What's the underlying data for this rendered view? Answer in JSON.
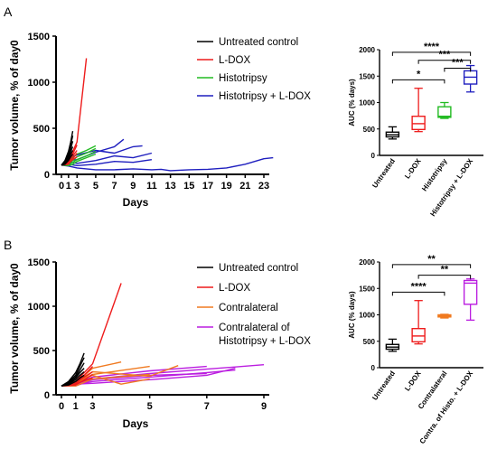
{
  "chart_data": [
    {
      "panel": "A",
      "type": "line",
      "xlabel": "Days",
      "ylabel": "Tumor volume, % of day0",
      "xticks": [
        "0",
        "1",
        "3",
        "5",
        "7",
        "9",
        "11",
        "13",
        "15",
        "17",
        "19",
        "21",
        "23"
      ],
      "yticks": [
        "0",
        "500",
        "1000",
        "1500"
      ],
      "xlim": [
        -0.5,
        24
      ],
      "ylim": [
        0,
        1500
      ],
      "legend": [
        {
          "name": "Untreated control",
          "color": "#000000"
        },
        {
          "name": "L-DOX",
          "color": "#ee1c1c"
        },
        {
          "name": "Histotripsy",
          "color": "#22bb22"
        },
        {
          "name": "Histotripsy + L-DOX",
          "color": "#1f1fbf"
        }
      ],
      "series": [
        {
          "group": 0,
          "x": [
            0,
            0.5,
            1,
            1.5,
            2
          ],
          "y": [
            100,
            150,
            250,
            350,
            470
          ]
        },
        {
          "group": 0,
          "x": [
            0,
            0.5,
            1,
            1.5,
            2
          ],
          "y": [
            100,
            140,
            220,
            320,
            420
          ]
        },
        {
          "group": 0,
          "x": [
            0,
            0.5,
            1,
            1.5,
            2
          ],
          "y": [
            100,
            130,
            200,
            280,
            360
          ]
        },
        {
          "group": 0,
          "x": [
            0,
            0.5,
            1,
            1.5,
            2
          ],
          "y": [
            100,
            125,
            190,
            250,
            300
          ]
        },
        {
          "group": 0,
          "x": [
            0,
            0.5,
            1,
            1.5,
            2
          ],
          "y": [
            100,
            120,
            170,
            220,
            260
          ]
        },
        {
          "group": 0,
          "x": [
            0,
            0.5,
            1,
            1.5,
            2
          ],
          "y": [
            100,
            110,
            150,
            190,
            220
          ]
        },
        {
          "group": 1,
          "x": [
            0,
            1,
            2,
            3,
            4
          ],
          "y": [
            100,
            150,
            250,
            350,
            1260
          ]
        },
        {
          "group": 1,
          "x": [
            0,
            1,
            2,
            3
          ],
          "y": [
            100,
            140,
            220,
            320
          ]
        },
        {
          "group": 1,
          "x": [
            0,
            1,
            2,
            3
          ],
          "y": [
            100,
            130,
            200,
            260
          ]
        },
        {
          "group": 1,
          "x": [
            0,
            1,
            2,
            3
          ],
          "y": [
            100,
            110,
            170,
            230
          ]
        },
        {
          "group": 1,
          "x": [
            0,
            1,
            2,
            3
          ],
          "y": [
            100,
            120,
            160,
            190
          ]
        },
        {
          "group": 2,
          "x": [
            0,
            1,
            2,
            3,
            4,
            5
          ],
          "y": [
            100,
            130,
            180,
            220,
            260,
            310
          ]
        },
        {
          "group": 2,
          "x": [
            0,
            1,
            2,
            3,
            4,
            5
          ],
          "y": [
            100,
            120,
            150,
            190,
            230,
            280
          ]
        },
        {
          "group": 2,
          "x": [
            0,
            1,
            2,
            3,
            4,
            5
          ],
          "y": [
            100,
            110,
            130,
            160,
            200,
            250
          ]
        },
        {
          "group": 2,
          "x": [
            0,
            1,
            2,
            3,
            4,
            5
          ],
          "y": [
            100,
            95,
            110,
            140,
            180,
            220
          ]
        },
        {
          "group": 3,
          "x": [
            0,
            1,
            3,
            5,
            7,
            9,
            10
          ],
          "y": [
            100,
            180,
            210,
            260,
            230,
            300,
            310
          ]
        },
        {
          "group": 3,
          "x": [
            0,
            1,
            3,
            5,
            7,
            8
          ],
          "y": [
            100,
            150,
            160,
            240,
            300,
            380
          ]
        },
        {
          "group": 3,
          "x": [
            0,
            1,
            3,
            5,
            7,
            9,
            11
          ],
          "y": [
            100,
            140,
            120,
            150,
            200,
            180,
            230
          ]
        },
        {
          "group": 3,
          "x": [
            0,
            1,
            3,
            5,
            7,
            9,
            11
          ],
          "y": [
            100,
            110,
            95,
            110,
            140,
            130,
            160
          ]
        },
        {
          "group": 3,
          "x": [
            0,
            1,
            3,
            5,
            7,
            9,
            11,
            12,
            13,
            15,
            17,
            19,
            21,
            23,
            24
          ],
          "y": [
            100,
            90,
            70,
            50,
            50,
            60,
            50,
            55,
            40,
            50,
            55,
            70,
            110,
            170,
            180
          ]
        }
      ]
    },
    {
      "panel": "A",
      "type": "box",
      "ylabel": "AUC (% days)",
      "yticks": [
        "0",
        "500",
        "1000",
        "1500",
        "2000"
      ],
      "ylim": [
        0,
        2000
      ],
      "categories": [
        "Untreated",
        "L-DOX",
        "Histotripsy",
        "Histotripsy + L-DOX"
      ],
      "colors": [
        "#000000",
        "#ee1c1c",
        "#22bb22",
        "#1f1fbf"
      ],
      "boxes": [
        {
          "min": 310,
          "q1": 350,
          "median": 390,
          "q3": 440,
          "max": 540
        },
        {
          "min": 450,
          "q1": 490,
          "median": 600,
          "q3": 740,
          "max": 1270
        },
        {
          "min": 700,
          "q1": 720,
          "median": 740,
          "q3": 920,
          "max": 1000
        },
        {
          "min": 1200,
          "q1": 1350,
          "median": 1480,
          "q3": 1600,
          "max": 1700
        }
      ],
      "significance": [
        {
          "from": 0,
          "to": 3,
          "text": "****",
          "y": 1950
        },
        {
          "from": 1,
          "to": 3,
          "text": "***",
          "y": 1800
        },
        {
          "from": 2,
          "to": 3,
          "text": "***",
          "y": 1650
        },
        {
          "from": 0,
          "to": 2,
          "text": "*",
          "y": 1430
        }
      ]
    },
    {
      "panel": "B",
      "type": "line",
      "xlabel": "Days",
      "ylabel": "Tumor volume, % of day0",
      "xticks": [
        "0",
        "1",
        "3",
        "5",
        "7",
        "9"
      ],
      "yticks": [
        "0",
        "500",
        "1000",
        "1500"
      ],
      "xlim": [
        -0.5,
        9.5
      ],
      "ylim": [
        0,
        1500
      ],
      "legend": [
        {
          "name": "Untreated control",
          "color": "#000000"
        },
        {
          "name": "L-DOX",
          "color": "#ee1c1c"
        },
        {
          "name": "Contralateral",
          "color": "#f07a20"
        },
        {
          "name": "Contralateral of Histotripsy + L-DOX",
          "color": "#bb1ee0",
          "lines": [
            "Contralateral of",
            "Histotripsy + L-DOX"
          ]
        }
      ],
      "series": [
        {
          "group": 0,
          "x": [
            0,
            0.5,
            1,
            1.5,
            2
          ],
          "y": [
            100,
            150,
            250,
            350,
            470
          ]
        },
        {
          "group": 0,
          "x": [
            0,
            0.5,
            1,
            1.5,
            2
          ],
          "y": [
            100,
            140,
            220,
            320,
            420
          ]
        },
        {
          "group": 0,
          "x": [
            0,
            0.5,
            1,
            1.5,
            2
          ],
          "y": [
            100,
            130,
            200,
            280,
            360
          ]
        },
        {
          "group": 0,
          "x": [
            0,
            0.5,
            1,
            1.5,
            2
          ],
          "y": [
            100,
            125,
            190,
            250,
            300
          ]
        },
        {
          "group": 0,
          "x": [
            0,
            0.5,
            1,
            1.5,
            2
          ],
          "y": [
            100,
            120,
            170,
            220,
            260
          ]
        },
        {
          "group": 0,
          "x": [
            0,
            0.5,
            1,
            1.5,
            2
          ],
          "y": [
            100,
            110,
            150,
            190,
            220
          ]
        },
        {
          "group": 1,
          "x": [
            0,
            1,
            2,
            3,
            4
          ],
          "y": [
            100,
            150,
            250,
            350,
            1260
          ]
        },
        {
          "group": 1,
          "x": [
            0,
            1,
            2,
            3
          ],
          "y": [
            100,
            140,
            220,
            320
          ]
        },
        {
          "group": 1,
          "x": [
            0,
            1,
            2,
            3
          ],
          "y": [
            100,
            130,
            200,
            260
          ]
        },
        {
          "group": 1,
          "x": [
            0,
            1,
            2,
            3
          ],
          "y": [
            100,
            110,
            170,
            230
          ]
        },
        {
          "group": 1,
          "x": [
            0,
            1,
            2,
            3
          ],
          "y": [
            100,
            120,
            160,
            190
          ]
        },
        {
          "group": 2,
          "x": [
            0,
            1,
            3,
            4
          ],
          "y": [
            100,
            130,
            300,
            370
          ]
        },
        {
          "group": 2,
          "x": [
            0,
            1,
            3,
            5
          ],
          "y": [
            100,
            120,
            230,
            320
          ]
        },
        {
          "group": 2,
          "x": [
            0,
            1,
            3,
            4,
            5
          ],
          "y": [
            100,
            140,
            220,
            120,
            180
          ]
        },
        {
          "group": 2,
          "x": [
            0,
            1,
            3,
            5,
            6
          ],
          "y": [
            100,
            110,
            260,
            210,
            330
          ]
        },
        {
          "group": 2,
          "x": [
            0,
            1,
            3,
            5
          ],
          "y": [
            100,
            100,
            180,
            230
          ]
        },
        {
          "group": 3,
          "x": [
            0,
            1,
            3,
            5,
            7,
            9
          ],
          "y": [
            100,
            120,
            180,
            240,
            290,
            340
          ]
        },
        {
          "group": 3,
          "x": [
            0,
            1,
            3,
            5,
            7
          ],
          "y": [
            100,
            130,
            200,
            270,
            320
          ]
        },
        {
          "group": 3,
          "x": [
            0,
            1,
            3,
            5,
            7,
            8
          ],
          "y": [
            100,
            110,
            150,
            200,
            250,
            280
          ]
        },
        {
          "group": 3,
          "x": [
            0,
            1,
            3,
            5,
            7
          ],
          "y": [
            100,
            100,
            170,
            220,
            240
          ]
        },
        {
          "group": 3,
          "x": [
            0,
            1,
            3,
            5,
            7,
            8
          ],
          "y": [
            100,
            120,
            130,
            170,
            220,
            300
          ]
        }
      ]
    },
    {
      "panel": "B",
      "type": "box",
      "ylabel": "AUC (% days)",
      "yticks": [
        "0",
        "500",
        "1000",
        "1500",
        "2000"
      ],
      "ylim": [
        0,
        2000
      ],
      "categories": [
        "Untreated",
        "L-DOX",
        "Contralateral",
        "Contra. of Histo. + L-DOX"
      ],
      "colors": [
        "#000000",
        "#ee1c1c",
        "#f07a20",
        "#bb1ee0"
      ],
      "boxes": [
        {
          "min": 310,
          "q1": 350,
          "median": 390,
          "q3": 440,
          "max": 540
        },
        {
          "min": 450,
          "q1": 490,
          "median": 600,
          "q3": 740,
          "max": 1270
        },
        {
          "min": 940,
          "q1": 960,
          "median": 980,
          "q3": 1000,
          "max": 1010
        },
        {
          "min": 900,
          "q1": 1200,
          "median": 1600,
          "q3": 1650,
          "max": 1680
        }
      ],
      "significance": [
        {
          "from": 0,
          "to": 3,
          "text": "**",
          "y": 1950
        },
        {
          "from": 1,
          "to": 3,
          "text": "**",
          "y": 1750
        },
        {
          "from": 0,
          "to": 2,
          "text": "****",
          "y": 1430
        }
      ]
    }
  ]
}
